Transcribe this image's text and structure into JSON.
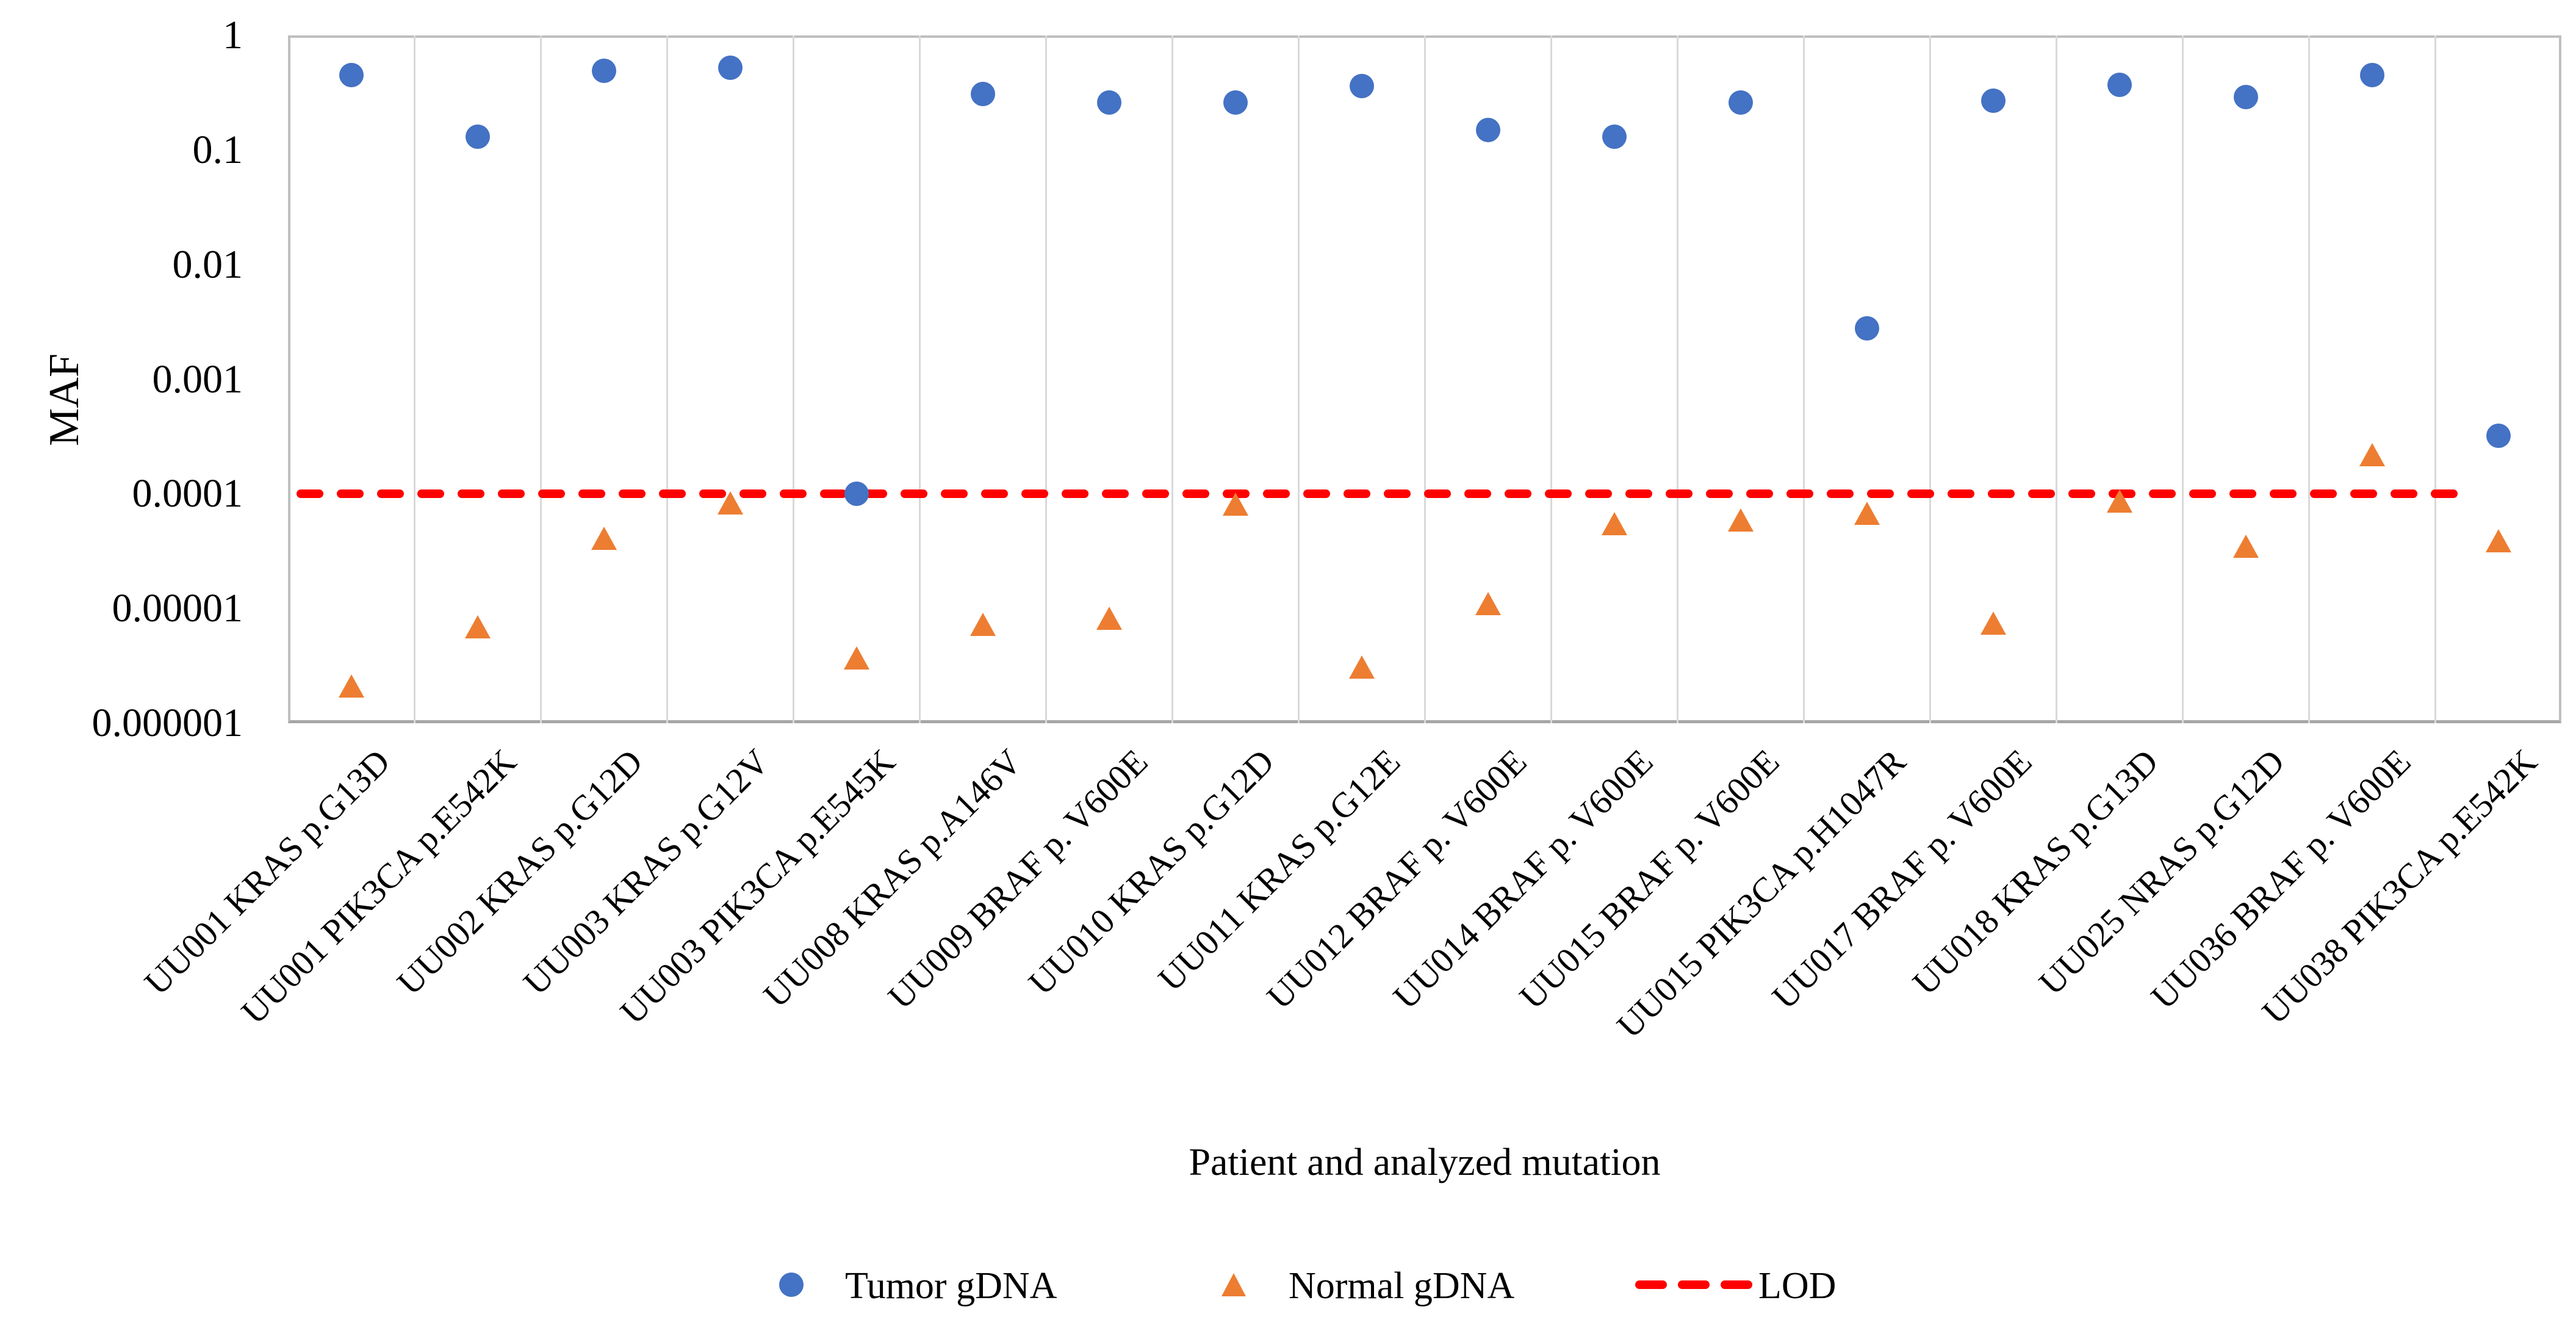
{
  "figure": {
    "y_axis": {
      "title": "MAF",
      "ticks": [
        "1",
        "0.1",
        "0.01",
        "0.001",
        "0.0001",
        "0.00001",
        "0.000001"
      ]
    },
    "x_axis": {
      "title": "Patient and analyzed mutation"
    },
    "legend": {
      "tumor_label": "Tumor gDNA",
      "normal_label": "Normal gDNA",
      "lod_label": "LOD"
    },
    "colors": {
      "tumor": "#4472C4",
      "normal": "#ED7D31",
      "lod": "#FF0000",
      "gridline": "#D9D9D9",
      "plot_border": "#BFBFBF",
      "text": "#000000"
    }
  },
  "chart_data": {
    "type": "scatter",
    "title": "",
    "xlabel": "Patient and analyzed mutation",
    "ylabel": "MAF",
    "y_scale": "log",
    "ylim": [
      1e-06,
      1
    ],
    "y_tick_values": [
      1,
      0.1,
      0.01,
      0.001,
      0.0001,
      1e-05,
      1e-06
    ],
    "grid": "vertical-only",
    "legend_position": "bottom",
    "categories": [
      "UU001 KRAS p.G13D",
      "UU001 PIK3CA p.E542K",
      "UU002 KRAS p.G12D",
      "UU003 KRAS p.G12V",
      "UU003 PIK3CA p.E545K",
      "UU008 KRAS p.A146V",
      "UU009 BRAF p. V600E",
      "UU010 KRAS p.G12D",
      "UU011 KRAS p.G12E",
      "UU012 BRAF p. V600E",
      "UU014 BRAF p. V600E",
      "UU015 BRAF p. V600E",
      "UU015 PIK3CA p.H1047R",
      "UU017 BRAF p. V600E",
      "UU018 KRAS p.G13D",
      "UU025 NRAS p.G12D",
      "UU036 BRAF p. V600E",
      "UU038 PIK3CA p.E542K"
    ],
    "series": [
      {
        "name": "Tumor gDNA",
        "marker": "circle",
        "color": "#4472C4",
        "values": [
          0.45,
          0.13,
          0.49,
          0.52,
          0.0001,
          0.31,
          0.26,
          0.26,
          0.36,
          0.15,
          0.13,
          0.26,
          0.0028,
          0.27,
          0.37,
          0.29,
          0.45,
          0.00032
        ]
      },
      {
        "name": "Normal gDNA",
        "marker": "triangle",
        "color": "#ED7D31",
        "values": [
          2.1e-06,
          6.9e-06,
          4.1e-05,
          8.4e-05,
          3.7e-06,
          7.3e-06,
          8.2e-06,
          8.2e-05,
          3.1e-06,
          1.1e-05,
          5.5e-05,
          5.9e-05,
          6.8e-05,
          7.5e-06,
          8.7e-05,
          3.5e-05,
          0.00022,
          3.9e-05
        ]
      }
    ],
    "reference_line": {
      "name": "LOD",
      "value": 0.0001,
      "color": "#FF0000",
      "style": "dashed"
    }
  }
}
